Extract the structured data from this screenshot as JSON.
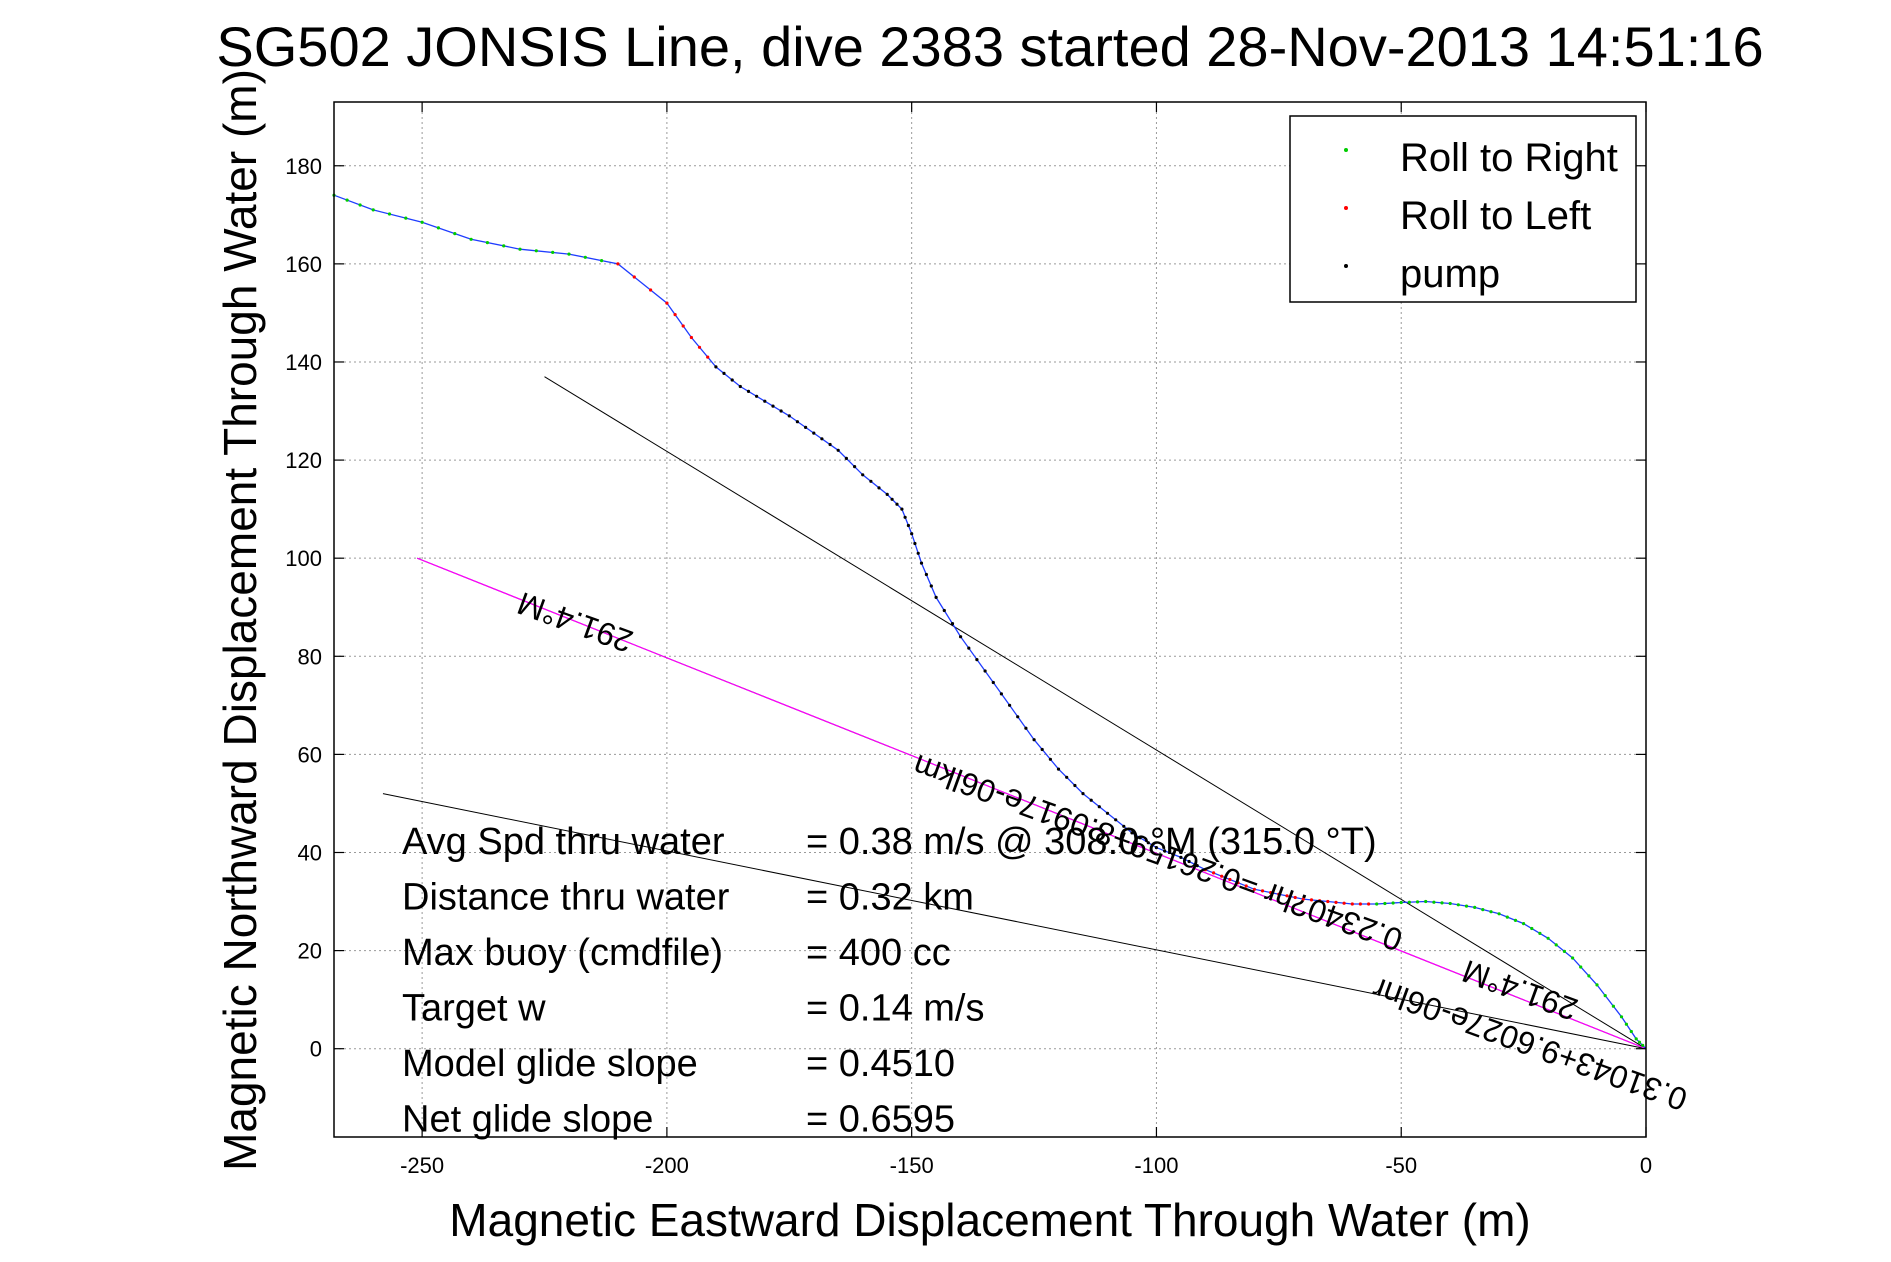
{
  "chart_data": {
    "type": "line",
    "title": "SG502 JONSIS Line, dive 2383 started 28-Nov-2013 14:51:16",
    "xlabel": "Magnetic Eastward Displacement Through Water (m)",
    "ylabel": "Magnetic Northward Displacement Through Water (m)",
    "xlim": [
      -268,
      0
    ],
    "ylim": [
      -18,
      193
    ],
    "xticks": [
      -250,
      -200,
      -150,
      -100,
      -50,
      0
    ],
    "yticks": [
      0,
      20,
      40,
      60,
      80,
      100,
      120,
      140,
      160,
      180
    ],
    "grid": true,
    "legend_position": "top-right",
    "colors": {
      "track": "#1f3cff",
      "roll_right": "#00cc00",
      "roll_left": "#ff0000",
      "pump": "#000000",
      "avg_line": "#ff00ff",
      "ref_lines": "#000000"
    },
    "legend": [
      {
        "label": "Roll to Right",
        "color": "#00cc00"
      },
      {
        "label": "Roll to Left",
        "color": "#ff0000"
      },
      {
        "label": "pump",
        "color": "#000000"
      }
    ],
    "track": {
      "x": [
        -268,
        -260,
        -250,
        -240,
        -230,
        -220,
        -210,
        -200,
        -195,
        -190,
        -185,
        -180,
        -175,
        -170,
        -165,
        -160,
        -155,
        -152,
        -150,
        -148,
        -145,
        -140,
        -135,
        -130,
        -125,
        -120,
        -115,
        -110,
        -105,
        -100,
        -95,
        -90,
        -85,
        -80,
        -75,
        -70,
        -65,
        -60,
        -55,
        -50,
        -45,
        -40,
        -35,
        -30,
        -25,
        -20,
        -15,
        -10,
        -5,
        -2,
        0
      ],
      "y": [
        174,
        171,
        168.5,
        165,
        163,
        162,
        160,
        152,
        145,
        139,
        135,
        132,
        129,
        125.5,
        122,
        117,
        113,
        110,
        105,
        99,
        92,
        84,
        77,
        70,
        63,
        57,
        52,
        48,
        44,
        41,
        39,
        36.5,
        34.5,
        32.5,
        31.5,
        30.5,
        30,
        29.5,
        29.5,
        29.8,
        30,
        29.6,
        28.8,
        27.5,
        25.5,
        22.5,
        18.5,
        13,
        6.5,
        2,
        0
      ]
    },
    "marker_segments": [
      {
        "series": "Roll to Right",
        "from_index": 0,
        "to_index": 6
      },
      {
        "series": "Roll to Left",
        "from_index": 6,
        "to_index": 9
      },
      {
        "series": "pump",
        "from_index": 9,
        "to_index": 31
      },
      {
        "series": "Roll to Left",
        "from_index": 31,
        "to_index": 38
      },
      {
        "series": "Roll to Right",
        "from_index": 38,
        "to_index": 50
      }
    ],
    "reference_lines": [
      {
        "name": "",
        "x": [
          -225,
          0
        ],
        "y": [
          137,
          0
        ]
      },
      {
        "name": "",
        "x": [
          -258,
          0
        ],
        "y": [
          52,
          0
        ]
      },
      {
        "name": "",
        "x": [
          -251,
          0
        ],
        "y": [
          100,
          0
        ]
      }
    ],
    "annotations": [
      {
        "text": "0.31043+9.6027e-06lnr",
        "position_x": -23,
        "position_y": 3,
        "angle": 200
      },
      {
        "text": "291.4°M",
        "position_x": -25,
        "position_y": 14,
        "angle": 200
      },
      {
        "text": "0.2340?hr =0.26159+8.0917e-06lkm",
        "position_x": -99,
        "position_y": 42,
        "angle": 200
      },
      {
        "text": "291.4°M",
        "position_x": -218,
        "position_y": 89,
        "angle": 200
      }
    ],
    "stats": [
      {
        "label": "Avg Spd thru water",
        "value": "=  0.38 m/s @ 308.0 °M (315.0 °T)"
      },
      {
        "label": "Distance thru water",
        "value": "=  0.32 km"
      },
      {
        "label": "Max buoy (cmdfile)",
        "value": "= 400 cc"
      },
      {
        "label": "Target w",
        "value": "= 0.14 m/s"
      },
      {
        "label": "Model glide slope",
        "value": "= 0.4510"
      },
      {
        "label": "Net glide slope",
        "value": "= 0.6595"
      }
    ]
  }
}
